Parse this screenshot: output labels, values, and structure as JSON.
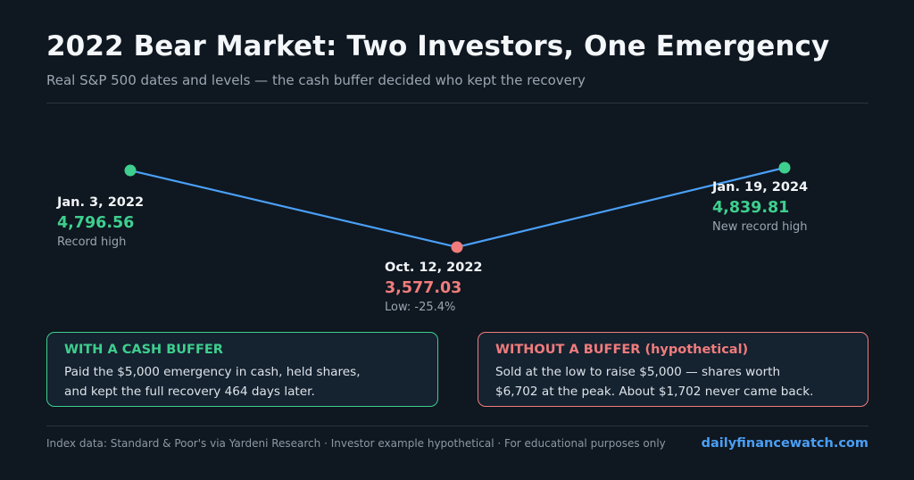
{
  "header": {
    "title": "2022 Bear Market: Two Investors, One Emergency",
    "subtitle": "Real S&P 500 dates and levels — the cash buffer decided who kept the recovery"
  },
  "chart_data": {
    "type": "line",
    "title": "2022 Bear Market: Two Investors, One Emergency",
    "x": [
      "2022-01-03",
      "2022-10-12",
      "2024-01-19"
    ],
    "x_tick_labels": [
      "Jan. 3, 2022",
      "Oct. 12, 2022",
      "Jan. 19, 2024"
    ],
    "values": [
      4796.56,
      3577.03,
      4839.81
    ],
    "value_labels": [
      "4,796.56",
      "3,577.03",
      "4,839.81"
    ],
    "notes": [
      "Record high",
      "Low: -25.4%",
      "New record high"
    ],
    "point_colors": [
      "#3ecf8e",
      "#f07c7c",
      "#3ecf8e"
    ],
    "line_color": "#4a9ff5",
    "grid": false,
    "axes_visible": false
  },
  "cards": {
    "good": {
      "title": "WITH A CASH BUFFER",
      "line1": "Paid the $5,000 emergency in cash, held shares,",
      "line2": "and kept the full recovery 464 days later.",
      "color": "#3ecf8e"
    },
    "bad": {
      "title": "WITHOUT A BUFFER (hypothetical)",
      "line1": "Sold at the low to raise $5,000 — shares worth",
      "line2": "$6,702 at the peak. About $1,702 never came back.",
      "color": "#f07c7c"
    }
  },
  "footer": {
    "note": "Index data: Standard & Poor's via Yardeni Research · Investor example hypothetical  ·  For educational purposes only",
    "brand": "dailyfinancewatch.com"
  },
  "colors": {
    "background": "#0f1720",
    "accent": "#4a9ff5",
    "positive": "#3ecf8e",
    "negative": "#f07c7c"
  }
}
